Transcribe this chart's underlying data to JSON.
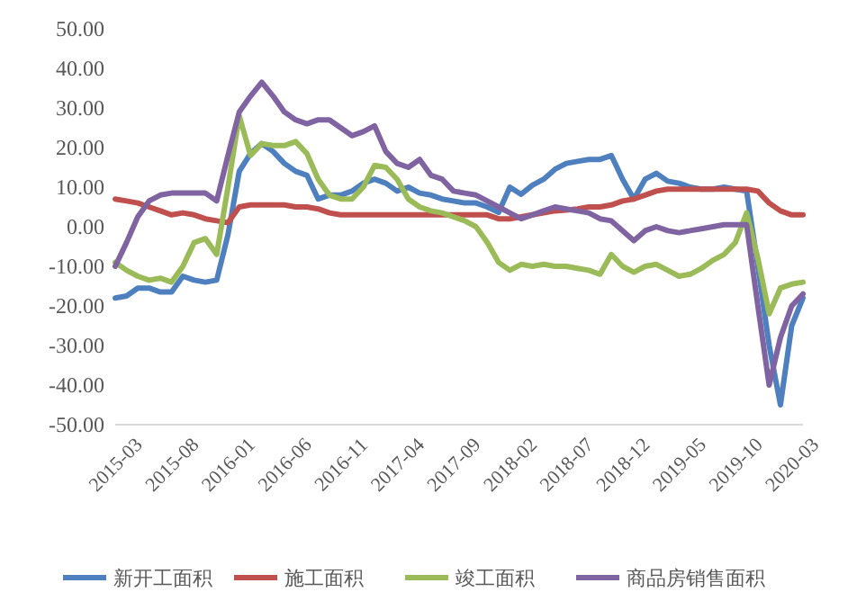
{
  "chart_data": {
    "type": "line",
    "categories": [
      "2015-03",
      null,
      null,
      null,
      null,
      "2015-08",
      null,
      null,
      null,
      null,
      "2016-01",
      null,
      null,
      null,
      null,
      "2016-06",
      null,
      null,
      null,
      null,
      "2016-11",
      null,
      null,
      null,
      null,
      "2017-04",
      null,
      null,
      null,
      null,
      "2017-09",
      null,
      null,
      null,
      null,
      "2018-02",
      null,
      null,
      null,
      null,
      "2018-07",
      null,
      null,
      null,
      null,
      "2018-12",
      null,
      null,
      null,
      null,
      "2019-05",
      null,
      null,
      null,
      null,
      "2019-10",
      null,
      null,
      null,
      null,
      "2020-03",
      null
    ],
    "series": [
      {
        "name": "新开工面积",
        "color": "#4e7fbf",
        "values": [
          -18,
          -17.5,
          -15.5,
          -15.5,
          -16.5,
          -16.5,
          -12.5,
          -13.5,
          -14,
          -13.5,
          -2,
          14,
          18.5,
          21,
          19,
          16,
          14,
          13,
          7,
          8,
          8,
          9,
          11,
          12,
          11,
          9,
          10,
          8.5,
          8,
          7,
          6.5,
          6,
          6,
          5,
          3.6,
          10,
          8.2,
          10.5,
          12,
          14.5,
          16,
          16.5,
          17,
          17,
          18,
          12,
          7,
          12,
          13.5,
          11.5,
          11,
          10,
          9.5,
          9.5,
          10,
          9.5,
          9,
          -10,
          -30,
          -45,
          -25,
          -18
        ]
      },
      {
        "name": "施工面积",
        "color": "#c0504d",
        "values": [
          7,
          6.5,
          6,
          5,
          4,
          3,
          3.5,
          3,
          2,
          1.5,
          1,
          5,
          5.5,
          5.5,
          5.5,
          5.5,
          5,
          5,
          4.5,
          3.5,
          3,
          3,
          3,
          3,
          3,
          3,
          3,
          3,
          3,
          3,
          3,
          3,
          3,
          3,
          2,
          2,
          2.5,
          3,
          3.5,
          4,
          4.2,
          4.5,
          5,
          5,
          5.5,
          6.5,
          7,
          8,
          9,
          9.5,
          9.5,
          9.5,
          9.5,
          9.5,
          9.5,
          9.5,
          9.5,
          9,
          6,
          4,
          3,
          3
        ]
      },
      {
        "name": "竣工面积",
        "color": "#9bbb59",
        "values": [
          -9,
          -11,
          -12.5,
          -13.5,
          -13,
          -14,
          -10,
          -4,
          -3,
          -7,
          10,
          28,
          18,
          21,
          20.5,
          20.5,
          21.5,
          18.5,
          12,
          8,
          7,
          7,
          10,
          15.5,
          15,
          12,
          7,
          5,
          4,
          3.5,
          2.5,
          1.5,
          0,
          -4,
          -9,
          -11,
          -9.5,
          -10,
          -9.5,
          -10,
          -10,
          -10.5,
          -11,
          -12,
          -7,
          -10,
          -11.5,
          -10,
          -9.5,
          -11,
          -12.5,
          -12,
          -10.5,
          -8.5,
          -7,
          -4,
          3.5,
          -8,
          -22,
          -15.5,
          -14.5,
          -14
        ]
      },
      {
        "name": "商品房销售面积",
        "color": "#8064a2",
        "values": [
          -10,
          -4,
          2.5,
          6.5,
          8,
          8.5,
          8.5,
          8.5,
          8.5,
          6.5,
          18,
          29,
          33,
          36.5,
          33,
          29,
          27,
          26,
          27,
          27,
          25,
          23,
          24,
          25.5,
          19,
          16,
          15,
          17,
          13,
          12,
          9,
          8.5,
          8,
          6.5,
          5,
          3.5,
          2,
          3,
          4,
          5,
          4.5,
          4,
          3.5,
          2,
          1.5,
          -1,
          -3.5,
          -1,
          0,
          -1,
          -1.5,
          -1,
          -0.5,
          0,
          0.5,
          0.5,
          0.5,
          -20,
          -40,
          -28,
          -20,
          -17
        ]
      }
    ],
    "ylim": [
      -50,
      50
    ],
    "yticks": [
      {
        "value": -50,
        "label": "-50.00"
      },
      {
        "value": -40,
        "label": "-40.00"
      },
      {
        "value": -30,
        "label": "-30.00"
      },
      {
        "value": -20,
        "label": "-20.00"
      },
      {
        "value": -10,
        "label": "-10.00"
      },
      {
        "value": 0,
        "label": "0.00"
      },
      {
        "value": 10,
        "label": "10.00"
      },
      {
        "value": 20,
        "label": "20.00"
      },
      {
        "value": 30,
        "label": "30.00"
      },
      {
        "value": 40,
        "label": "40.00"
      },
      {
        "value": 50,
        "label": "50.00"
      }
    ],
    "grid": false,
    "legend": "bottom",
    "marker": "none",
    "line_style": "solid"
  }
}
